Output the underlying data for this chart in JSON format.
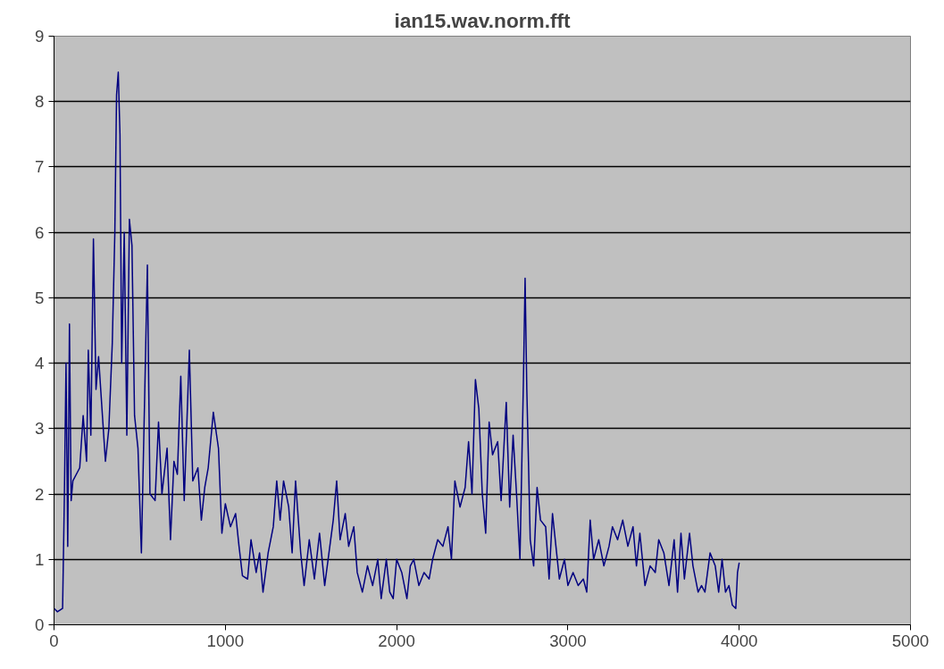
{
  "chart_data": {
    "type": "line",
    "title": "ian15.wav.norm.fft",
    "x": [
      0,
      20,
      50,
      60,
      70,
      80,
      90,
      100,
      110,
      150,
      170,
      190,
      200,
      215,
      230,
      245,
      260,
      280,
      300,
      320,
      340,
      355,
      365,
      375,
      385,
      395,
      410,
      425,
      440,
      455,
      470,
      490,
      510,
      530,
      545,
      560,
      590,
      610,
      630,
      660,
      680,
      700,
      720,
      740,
      760,
      790,
      810,
      840,
      860,
      880,
      900,
      930,
      960,
      980,
      1000,
      1030,
      1060,
      1080,
      1100,
      1130,
      1150,
      1180,
      1200,
      1220,
      1250,
      1280,
      1300,
      1320,
      1340,
      1370,
      1390,
      1410,
      1440,
      1460,
      1490,
      1520,
      1550,
      1580,
      1600,
      1630,
      1650,
      1670,
      1700,
      1720,
      1750,
      1770,
      1800,
      1830,
      1860,
      1890,
      1910,
      1940,
      1960,
      1980,
      2000,
      2030,
      2060,
      2080,
      2100,
      2130,
      2160,
      2190,
      2210,
      2240,
      2270,
      2300,
      2320,
      2340,
      2370,
      2400,
      2420,
      2440,
      2460,
      2480,
      2500,
      2520,
      2540,
      2560,
      2590,
      2610,
      2640,
      2660,
      2680,
      2700,
      2720,
      2740,
      2750,
      2760,
      2780,
      2800,
      2820,
      2840,
      2870,
      2890,
      2910,
      2930,
      2950,
      2980,
      3000,
      3030,
      3060,
      3090,
      3110,
      3130,
      3150,
      3180,
      3210,
      3240,
      3260,
      3290,
      3320,
      3350,
      3380,
      3400,
      3420,
      3450,
      3480,
      3510,
      3530,
      3560,
      3590,
      3620,
      3640,
      3660,
      3680,
      3710,
      3730,
      3760,
      3780,
      3800,
      3830,
      3860,
      3880,
      3900,
      3920,
      3940,
      3960,
      3980,
      3990,
      4000
    ],
    "series": [
      {
        "color": "#000080",
        "values": [
          0.25,
          0.2,
          0.25,
          1.9,
          4.0,
          1.2,
          4.6,
          1.9,
          2.2,
          2.4,
          3.2,
          2.5,
          4.2,
          2.9,
          5.9,
          3.6,
          4.1,
          3.3,
          2.5,
          3.0,
          4.3,
          6.0,
          8.1,
          8.45,
          7.5,
          4.0,
          6.0,
          2.9,
          6.2,
          5.8,
          3.2,
          2.7,
          1.1,
          3.6,
          5.5,
          2.0,
          1.9,
          3.1,
          2.0,
          2.7,
          1.3,
          2.5,
          2.3,
          3.8,
          1.9,
          4.2,
          2.2,
          2.4,
          1.6,
          2.1,
          2.4,
          3.25,
          2.7,
          1.4,
          1.85,
          1.5,
          1.7,
          1.2,
          0.75,
          0.7,
          1.3,
          0.8,
          1.1,
          0.5,
          1.1,
          1.5,
          2.2,
          1.6,
          2.2,
          1.8,
          1.1,
          2.2,
          1.1,
          0.6,
          1.3,
          0.7,
          1.4,
          0.6,
          1.0,
          1.6,
          2.2,
          1.3,
          1.7,
          1.2,
          1.5,
          0.8,
          0.5,
          0.9,
          0.6,
          1.0,
          0.4,
          1.0,
          0.5,
          0.4,
          1.0,
          0.8,
          0.4,
          0.9,
          1.0,
          0.6,
          0.8,
          0.7,
          1.0,
          1.3,
          1.2,
          1.5,
          1.0,
          2.2,
          1.8,
          2.1,
          2.8,
          2.0,
          3.75,
          3.3,
          2.0,
          1.4,
          3.1,
          2.6,
          2.8,
          1.9,
          3.4,
          1.8,
          2.9,
          2.0,
          1.0,
          3.7,
          5.3,
          3.6,
          1.3,
          0.9,
          2.1,
          1.6,
          1.5,
          0.7,
          1.7,
          1.2,
          0.7,
          1.0,
          0.6,
          0.8,
          0.6,
          0.7,
          0.5,
          1.6,
          1.0,
          1.3,
          0.9,
          1.2,
          1.5,
          1.3,
          1.6,
          1.2,
          1.5,
          0.9,
          1.4,
          0.6,
          0.9,
          0.8,
          1.3,
          1.1,
          0.6,
          1.3,
          0.5,
          1.4,
          0.7,
          1.4,
          0.9,
          0.5,
          0.6,
          0.5,
          1.1,
          0.9,
          0.5,
          1.0,
          0.5,
          0.6,
          0.3,
          0.25,
          0.8,
          0.95
        ]
      }
    ],
    "xlim": [
      0,
      5000
    ],
    "xticks": [
      0,
      1000,
      2000,
      3000,
      4000,
      5000
    ],
    "ylim": [
      0,
      9
    ],
    "yticks": [
      0,
      1,
      2,
      3,
      4,
      5,
      6,
      7,
      8,
      9
    ],
    "grid": "y",
    "marker": "none",
    "line_style": "solid"
  }
}
